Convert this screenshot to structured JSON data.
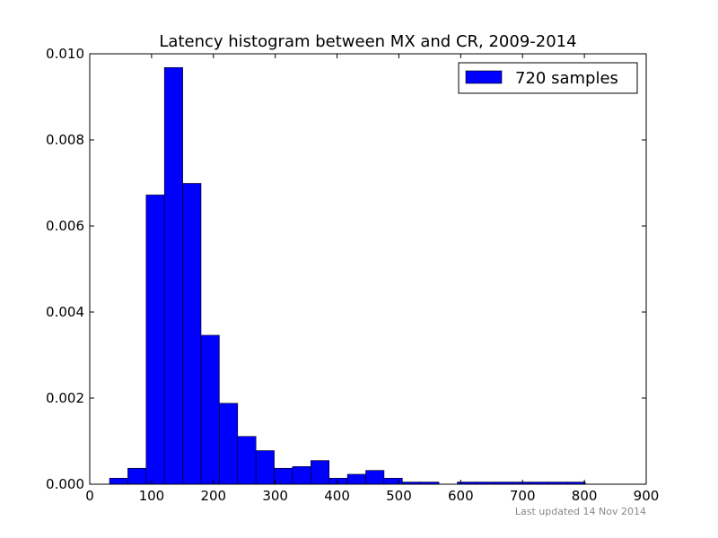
{
  "chart_data": {
    "type": "bar",
    "title": "Latency histogram between MX and CR, 2009-2014",
    "xlabel": "",
    "ylabel": "",
    "xlim": [
      0,
      900
    ],
    "ylim": [
      0,
      0.01
    ],
    "xticks": [
      0,
      100,
      200,
      300,
      400,
      500,
      600,
      700,
      800,
      900
    ],
    "yticks": [
      0.0,
      0.002,
      0.004,
      0.006,
      0.008,
      0.01
    ],
    "xtick_labels": [
      "0",
      "100",
      "200",
      "300",
      "400",
      "500",
      "600",
      "700",
      "800",
      "900"
    ],
    "ytick_labels": [
      "0.000",
      "0.002",
      "0.004",
      "0.006",
      "0.008",
      "0.010"
    ],
    "bin_width": 29.6,
    "bins": [
      {
        "start": 32.0,
        "value": 0.00014
      },
      {
        "start": 61.6,
        "value": 0.00037
      },
      {
        "start": 91.2,
        "value": 0.00672
      },
      {
        "start": 120.8,
        "value": 0.00968
      },
      {
        "start": 150.4,
        "value": 0.00699
      },
      {
        "start": 180.0,
        "value": 0.00346
      },
      {
        "start": 209.6,
        "value": 0.00188
      },
      {
        "start": 239.2,
        "value": 0.00111
      },
      {
        "start": 268.8,
        "value": 0.00078
      },
      {
        "start": 298.4,
        "value": 0.00037
      },
      {
        "start": 328.0,
        "value": 0.00041
      },
      {
        "start": 357.6,
        "value": 0.00055
      },
      {
        "start": 387.2,
        "value": 0.00014
      },
      {
        "start": 416.8,
        "value": 0.00023
      },
      {
        "start": 446.4,
        "value": 0.00032
      },
      {
        "start": 476.0,
        "value": 0.00014
      },
      {
        "start": 505.6,
        "value": 5e-05
      },
      {
        "start": 535.2,
        "value": 5e-05
      },
      {
        "start": 564.8,
        "value": 0.0
      },
      {
        "start": 594.4,
        "value": 5e-05
      },
      {
        "start": 624.0,
        "value": 5e-05
      },
      {
        "start": 653.6,
        "value": 5e-05
      },
      {
        "start": 683.2,
        "value": 5e-05
      },
      {
        "start": 712.8,
        "value": 5e-05
      },
      {
        "start": 742.4,
        "value": 5e-05
      },
      {
        "start": 772.0,
        "value": 5e-05
      }
    ],
    "series": [
      {
        "name": "720 samples",
        "color": "#0000ff"
      }
    ],
    "legend_position": "top-right",
    "grid": false
  },
  "footnote": "Last updated 14 Nov 2014"
}
